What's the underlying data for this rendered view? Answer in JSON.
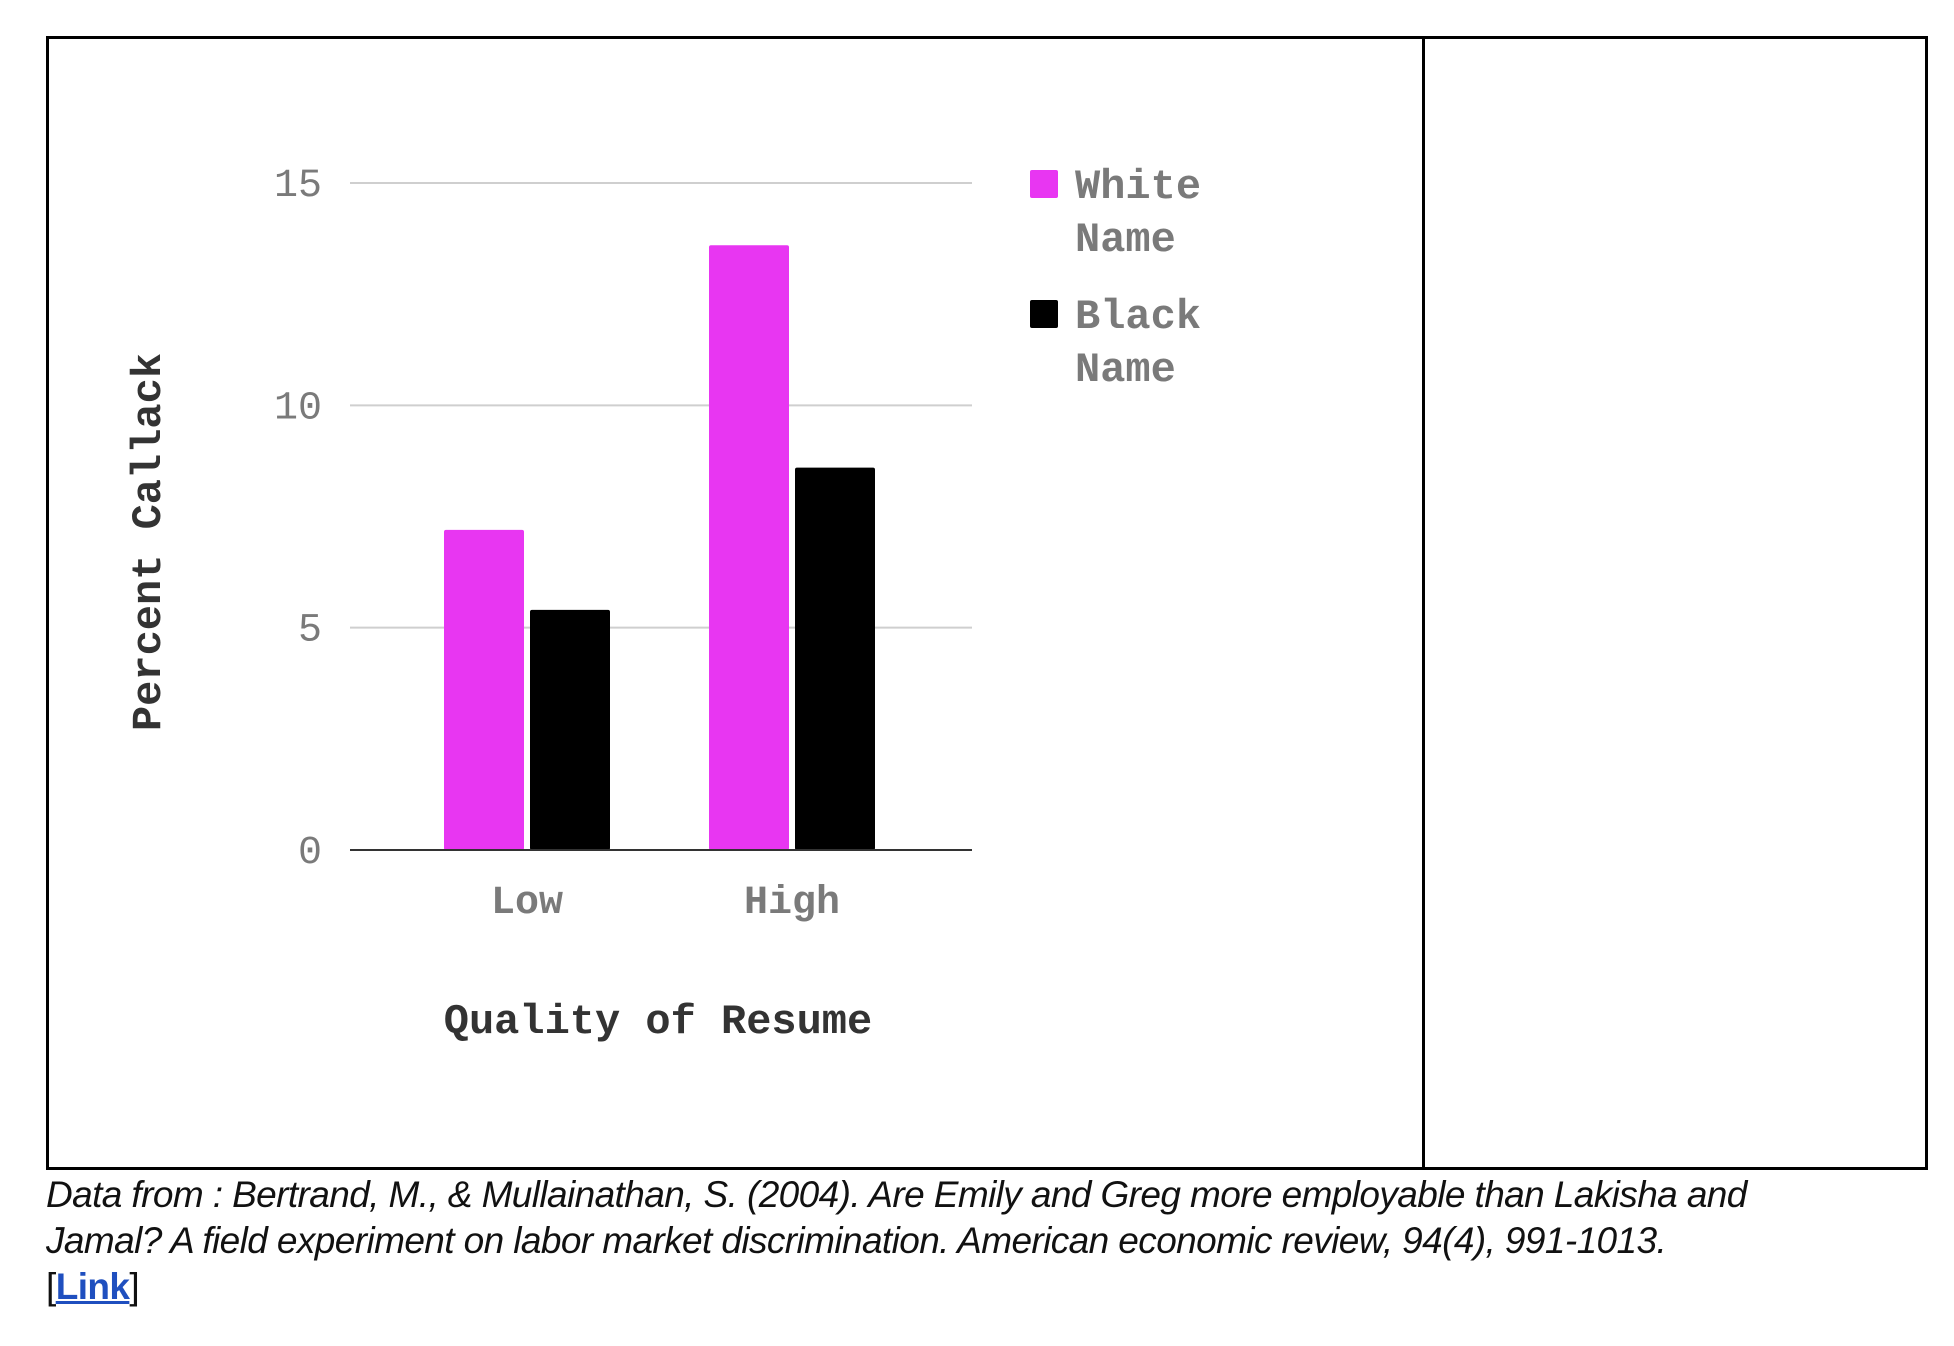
{
  "chart_data": {
    "type": "bar",
    "categories": [
      "Low",
      "High"
    ],
    "series": [
      {
        "name": "White Name",
        "values": [
          7.2,
          13.6
        ],
        "color": "#e836f2"
      },
      {
        "name": "Black Name",
        "values": [
          5.4,
          8.6
        ],
        "color": "#000000"
      }
    ],
    "title": "",
    "xlabel": "Quality of Resume",
    "ylabel": "Percent Callack",
    "ylim": [
      0,
      15
    ],
    "yticks": [
      "0",
      "5",
      "10",
      "15"
    ],
    "grid": true,
    "legend": {
      "position": "right",
      "entries": [
        {
          "lines": [
            "White",
            "Name"
          ],
          "color": "#e836f2"
        },
        {
          "lines": [
            "Black",
            "Name"
          ],
          "color": "#000000"
        }
      ]
    }
  },
  "caption": {
    "text": "Data from : Bertrand, M., & Mullainathan, S. (2004). Are Emily and Greg more employable than Lakisha and Jamal? A field experiment on labor market discrimination. American economic review, 94(4), 991-1013.",
    "bracket_open": "[",
    "link_label": "Link",
    "bracket_close": "]"
  }
}
